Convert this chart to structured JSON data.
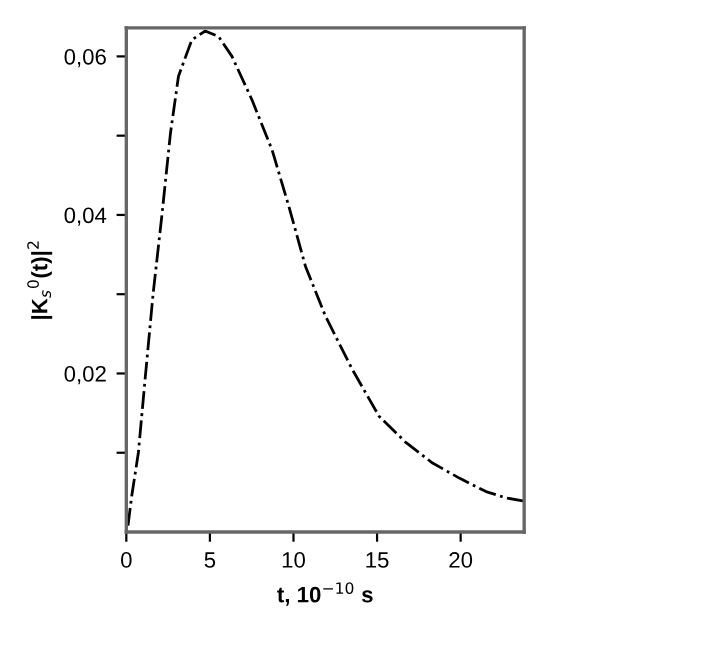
{
  "chart_data": {
    "type": "line",
    "xlabel": "t, 10$^{−10}$ s",
    "ylabel": "|K$_{s}$$^{0}$(t)|$^{2}$",
    "x": [
      0.1,
      0.32,
      0.72,
      1.12,
      1.6,
      2.12,
      2.64,
      3.12,
      3.92,
      4.72,
      5.52,
      6.32,
      7.52,
      8.72,
      9.72,
      10.72,
      11.92,
      13.52,
      15.12,
      16.72,
      18.32,
      19.92,
      21.52,
      22.72,
      23.8
    ],
    "series": [
      {
        "color": "#000000",
        "values": [
          0.0008,
          0.0045,
          0.01,
          0.0192,
          0.03,
          0.0398,
          0.0503,
          0.0575,
          0.0621,
          0.0632,
          0.0625,
          0.06,
          0.0545,
          0.0482,
          0.0411,
          0.0335,
          0.0272,
          0.0205,
          0.0146,
          0.0113,
          0.0087,
          0.0068,
          0.0051,
          0.0043,
          0.0039
        ]
      }
    ],
    "xlim": [
      0,
      23.8
    ],
    "ylim": [
      0,
      0.0636
    ],
    "xticks": [
      0,
      5,
      10,
      15,
      20
    ],
    "yticks": [
      {
        "value": 0.01,
        "label": null
      },
      {
        "value": 0.02,
        "label": "0,02"
      },
      {
        "value": 0.03,
        "label": null
      },
      {
        "value": 0.04,
        "label": "0,04"
      },
      {
        "value": 0.05,
        "label": null
      },
      {
        "value": 0.06,
        "label": "0,06"
      }
    ],
    "line_style": "dashdot",
    "marker": "none",
    "grid": false,
    "legend": false
  }
}
